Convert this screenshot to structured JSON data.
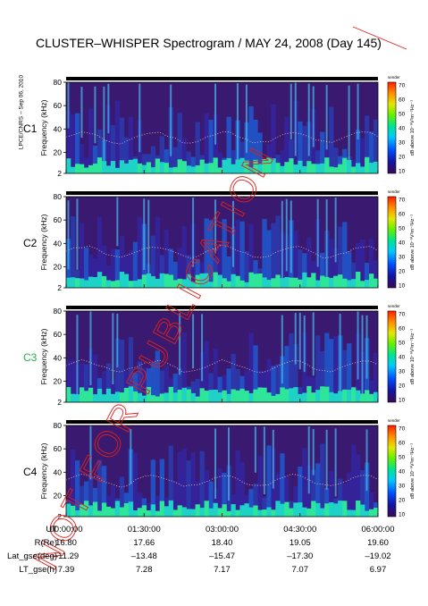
{
  "page": {
    "title": "CLUSTER–WHISPER Spectrogram / MAY 24, 2008 (Day 145)",
    "stamp": "LPCE/CNRS – Sep 06, 2010",
    "watermark": "NOT FOR PUBLICATION"
  },
  "chart_data": {
    "type": "heatmap",
    "title": "CLUSTER–WHISPER Spectrogram / MAY 24, 2008 (Day 145)",
    "ylabel": "Frequency (kHz)",
    "yticks": [
      "2",
      "20",
      "40",
      "60",
      "80"
    ],
    "ylim": [
      2,
      80
    ],
    "colorbar": {
      "label": "dB above 10⁻⁸V²m⁻²Hz⁻¹",
      "header": "sender",
      "ticks": [
        "10",
        "20",
        "30",
        "40",
        "50",
        "60",
        "70"
      ],
      "range": [
        10,
        70
      ],
      "colors": [
        "#3c0a5a",
        "#1414a0",
        "#0050ff",
        "#00c8ff",
        "#00e68c",
        "#64f000",
        "#e6e600",
        "#ff8c00",
        "#ff1e00"
      ]
    },
    "panels": [
      {
        "name": "C1",
        "color": "#000000"
      },
      {
        "name": "C2",
        "color": "#000000"
      },
      {
        "name": "C3",
        "color": "#1fb24a"
      },
      {
        "name": "C4",
        "color": "#000000"
      }
    ],
    "x_axis": {
      "labels": {
        "ut": "UT",
        "r": "R(Re)",
        "lat": "Lat_gse(deg)",
        "lt": "LT_gse(h)"
      },
      "columns": [
        {
          "ut": "00:00:00",
          "r": "16.80",
          "lat": "–11.29",
          "lt": "7.39"
        },
        {
          "ut": "01:30:00",
          "r": "17.66",
          "lat": "–13.48",
          "lt": "7.28"
        },
        {
          "ut": "03:00:00",
          "r": "18.40",
          "lat": "–15.47",
          "lt": "7.17"
        },
        {
          "ut": "04:30:00",
          "r": "19.05",
          "lat": "–17.30",
          "lt": "7.07"
        },
        {
          "ut": "06:00:00",
          "r": "19.60",
          "lat": "–19.02",
          "lt": "6.97"
        }
      ]
    }
  }
}
